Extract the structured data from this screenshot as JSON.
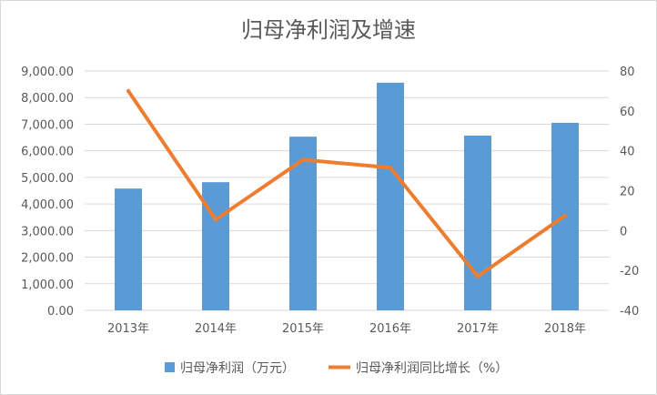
{
  "chart_data": {
    "type": "bar",
    "title": "归母净利润及增速",
    "categories": [
      "2013年",
      "2014年",
      "2015年",
      "2016年",
      "2017年",
      "2018年"
    ],
    "series": [
      {
        "name": "归母净利润（万元）",
        "type": "bar",
        "axis": "left",
        "color": "#5b9bd5",
        "values": [
          4580,
          4820,
          6530,
          8560,
          6570,
          7050
        ]
      },
      {
        "name": "归母净利润同比增长（%）",
        "type": "line",
        "axis": "right",
        "color": "#ed7d31",
        "values": [
          70,
          5.5,
          35.5,
          31.5,
          -23,
          7.5
        ]
      }
    ],
    "y_left": {
      "min": 0,
      "max": 9000,
      "ticks": [
        "0.00",
        "1,000.00",
        "2,000.00",
        "3,000.00",
        "4,000.00",
        "5,000.00",
        "6,000.00",
        "7,000.00",
        "8,000.00",
        "9,000.00"
      ]
    },
    "y_right": {
      "min": -40,
      "max": 80,
      "ticks": [
        "-40",
        "-20",
        "0",
        "20",
        "40",
        "60",
        "80"
      ]
    },
    "grid": true,
    "legend": "bottom"
  }
}
